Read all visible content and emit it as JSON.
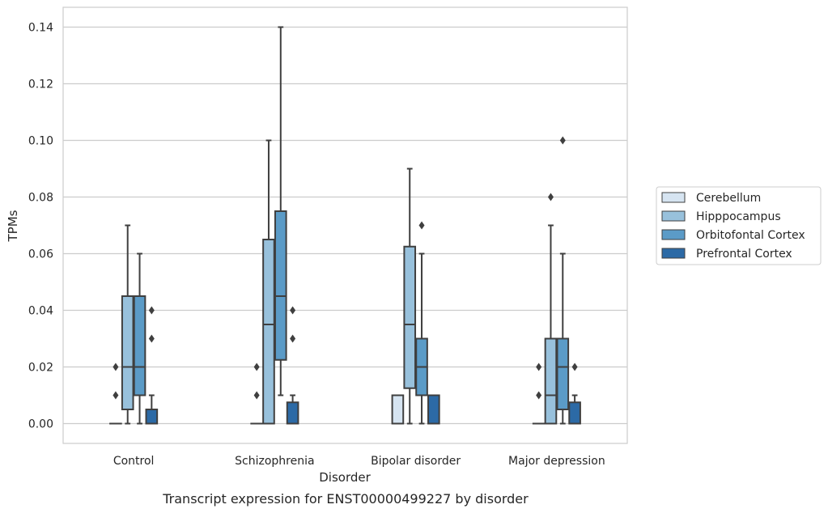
{
  "chart_data": {
    "type": "box",
    "caption": "Transcript expression for ENST00000499227 by disorder",
    "xlabel": "Disorder",
    "ylabel": "TPMs",
    "ylim": [
      -0.007,
      0.147
    ],
    "yticks": [
      0.0,
      0.02,
      0.04,
      0.06,
      0.08,
      0.1,
      0.12,
      0.14
    ],
    "ytick_labels": [
      "0.00",
      "0.02",
      "0.04",
      "0.06",
      "0.08",
      "0.10",
      "0.12",
      "0.14"
    ],
    "grid": "horizontal",
    "legend_position": "right",
    "categories": [
      "Control",
      "Schizophrenia",
      "Bipolar disorder",
      "Major depression"
    ],
    "series": [
      {
        "name": "Cerebellum",
        "color": "#d6e4f1",
        "boxes": [
          {
            "q1": 0.0,
            "median": 0.0,
            "q3": 0.0,
            "whisker_low": 0.0,
            "whisker_high": 0.0,
            "outliers": [
              0.01,
              0.02
            ]
          },
          {
            "q1": 0.0,
            "median": 0.0,
            "q3": 0.0,
            "whisker_low": 0.0,
            "whisker_high": 0.0,
            "outliers": [
              0.01,
              0.02
            ]
          },
          {
            "q1": 0.0,
            "median": 0.0,
            "q3": 0.01,
            "whisker_low": 0.0,
            "whisker_high": 0.01,
            "outliers": []
          },
          {
            "q1": 0.0,
            "median": 0.0,
            "q3": 0.0,
            "whisker_low": 0.0,
            "whisker_high": 0.0,
            "outliers": [
              0.01,
              0.02
            ]
          }
        ]
      },
      {
        "name": "Hipppocampus",
        "color": "#98c1dc",
        "boxes": [
          {
            "q1": 0.005,
            "median": 0.02,
            "q3": 0.045,
            "whisker_low": 0.0,
            "whisker_high": 0.07,
            "outliers": []
          },
          {
            "q1": 0.0,
            "median": 0.035,
            "q3": 0.065,
            "whisker_low": 0.0,
            "whisker_high": 0.1,
            "outliers": []
          },
          {
            "q1": 0.0125,
            "median": 0.035,
            "q3": 0.0625,
            "whisker_low": 0.0,
            "whisker_high": 0.09,
            "outliers": []
          },
          {
            "q1": 0.0,
            "median": 0.01,
            "q3": 0.03,
            "whisker_low": 0.0,
            "whisker_high": 0.07,
            "outliers": [
              0.08
            ]
          }
        ]
      },
      {
        "name": "Orbitofontal Cortex",
        "color": "#5b9bc7",
        "boxes": [
          {
            "q1": 0.01,
            "median": 0.02,
            "q3": 0.045,
            "whisker_low": 0.0,
            "whisker_high": 0.06,
            "outliers": []
          },
          {
            "q1": 0.0225,
            "median": 0.045,
            "q3": 0.075,
            "whisker_low": 0.01,
            "whisker_high": 0.14,
            "outliers": []
          },
          {
            "q1": 0.01,
            "median": 0.02,
            "q3": 0.03,
            "whisker_low": 0.0,
            "whisker_high": 0.06,
            "outliers": [
              0.07
            ]
          },
          {
            "q1": 0.005,
            "median": 0.02,
            "q3": 0.03,
            "whisker_low": 0.0,
            "whisker_high": 0.06,
            "outliers": [
              0.1
            ]
          }
        ]
      },
      {
        "name": "Prefrontal Cortex",
        "color": "#2c6aa6",
        "boxes": [
          {
            "q1": 0.0,
            "median": 0.0,
            "q3": 0.005,
            "whisker_low": 0.0,
            "whisker_high": 0.01,
            "outliers": [
              0.03,
              0.04
            ]
          },
          {
            "q1": 0.0,
            "median": 0.0,
            "q3": 0.0075,
            "whisker_low": 0.0,
            "whisker_high": 0.01,
            "outliers": [
              0.03,
              0.04
            ]
          },
          {
            "q1": 0.0,
            "median": 0.0,
            "q3": 0.01,
            "whisker_low": 0.0,
            "whisker_high": 0.01,
            "outliers": []
          },
          {
            "q1": 0.0,
            "median": 0.0,
            "q3": 0.0075,
            "whisker_low": 0.0,
            "whisker_high": 0.01,
            "outliers": [
              0.02
            ]
          }
        ]
      }
    ]
  }
}
